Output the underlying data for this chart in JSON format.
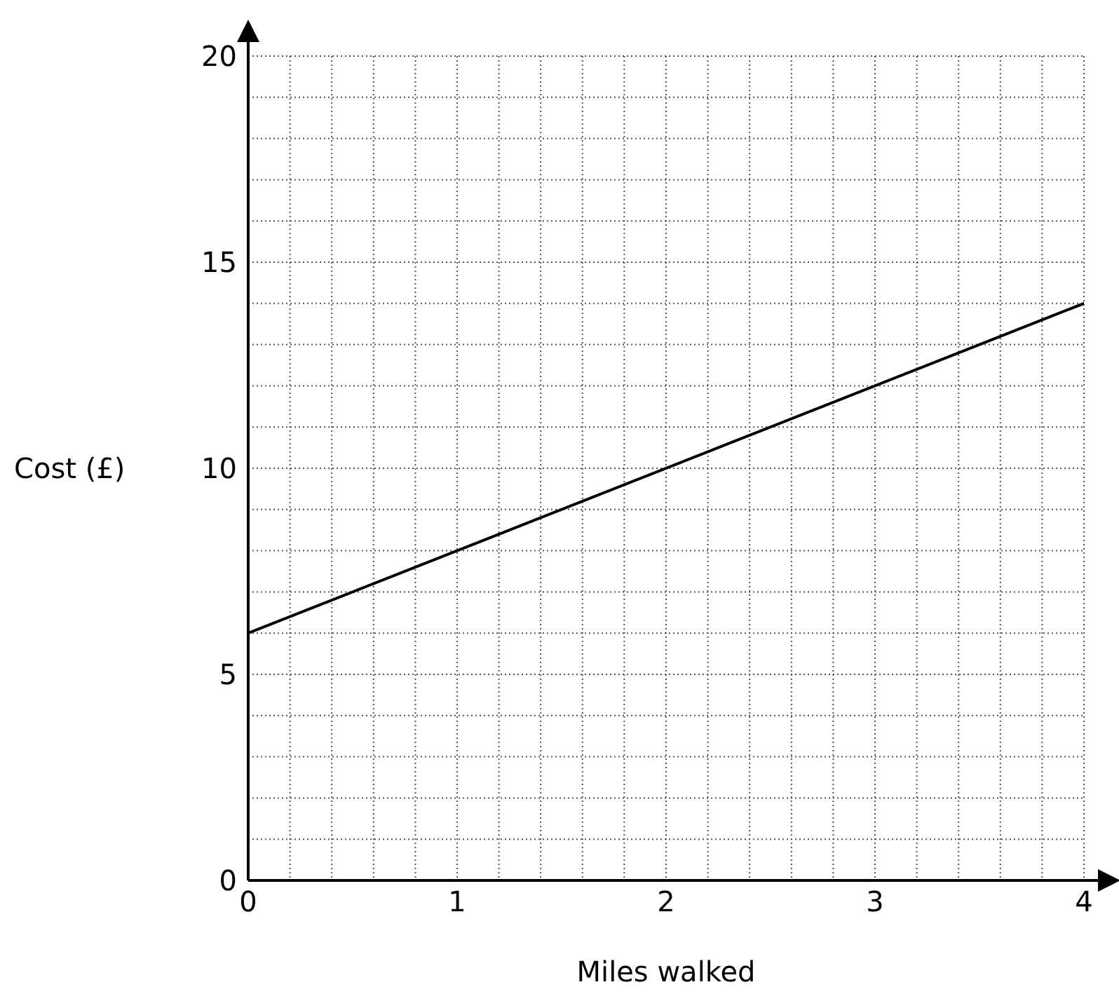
{
  "chart_data": {
    "type": "line",
    "xlabel": "Miles walked",
    "ylabel": "Cost (£)",
    "x": [
      0,
      4
    ],
    "series": [
      {
        "color": "#000000",
        "values": [
          6,
          14
        ]
      }
    ],
    "xlim": [
      0,
      4
    ],
    "ylim": [
      0,
      20
    ],
    "xticks": [
      0,
      {
        "value": 0.2,
        "label": null
      },
      {
        "value": 0.4,
        "label": null
      },
      {
        "value": 0.6,
        "label": null
      },
      {
        "value": 0.8,
        "label": null
      },
      1,
      {
        "value": 1.2,
        "label": null
      },
      {
        "value": 1.4,
        "label": null
      },
      {
        "value": 1.6,
        "label": null
      },
      {
        "value": 1.8,
        "label": null
      },
      2,
      {
        "value": 2.2,
        "label": null
      },
      {
        "value": 2.4,
        "label": null
      },
      {
        "value": 2.6,
        "label": null
      },
      {
        "value": 2.8,
        "label": null
      },
      3,
      {
        "value": 3.2,
        "label": null
      },
      {
        "value": 3.4,
        "label": null
      },
      {
        "value": 3.6,
        "label": null
      },
      {
        "value": 3.8,
        "label": null
      },
      4
    ],
    "yticks": [
      0,
      {
        "value": 1,
        "label": null
      },
      {
        "value": 2,
        "label": null
      },
      {
        "value": 3,
        "label": null
      },
      {
        "value": 4,
        "label": null
      },
      5,
      {
        "value": 6,
        "label": null
      },
      {
        "value": 7,
        "label": null
      },
      {
        "value": 8,
        "label": null
      },
      {
        "value": 9,
        "label": null
      },
      10,
      {
        "value": 11,
        "label": null
      },
      {
        "value": 12,
        "label": null
      },
      {
        "value": 13,
        "label": null
      },
      {
        "value": 14,
        "label": null
      },
      15,
      {
        "value": 16,
        "label": null
      },
      {
        "value": 17,
        "label": null
      },
      {
        "value": 18,
        "label": null
      },
      {
        "value": 19,
        "label": null
      },
      20
    ],
    "grid": true,
    "marker": "none",
    "line_style": "solid"
  }
}
